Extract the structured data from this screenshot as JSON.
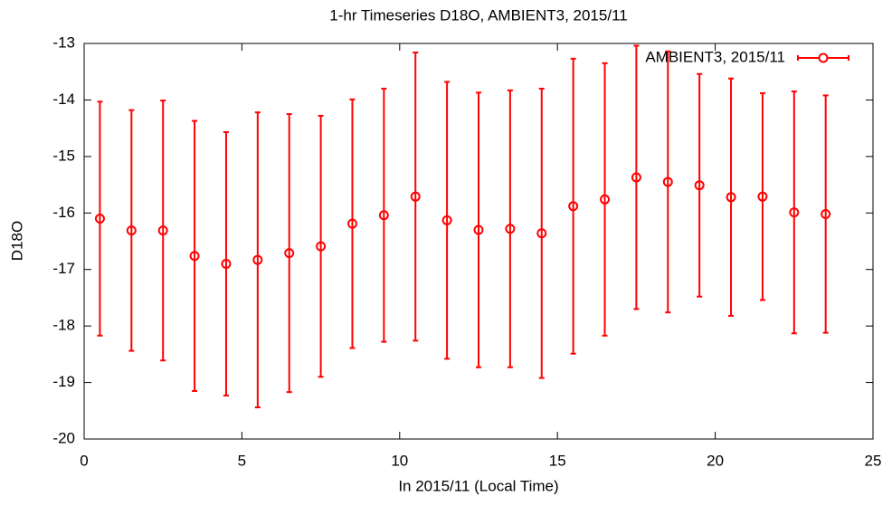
{
  "chart_data": {
    "type": "errorbar",
    "title": "1-hr Timeseries D18O, AMBIENT3, 2015/11",
    "x_label": "In 2015/11 (Local Time)",
    "y_label": "D18O",
    "legend_position": "upper right",
    "x": [
      0.5,
      1.5,
      2.5,
      3.5,
      4.5,
      5.5,
      6.5,
      7.5,
      8.5,
      9.5,
      10.5,
      11.5,
      12.5,
      13.5,
      14.5,
      15.5,
      16.5,
      17.5,
      18.5,
      19.5,
      20.5,
      21.5,
      22.5,
      23.5
    ],
    "series": [
      {
        "name": "AMBIENT3, 2015/11",
        "color": "#ff0000",
        "values": [
          -16.1,
          -16.31,
          -16.31,
          -16.76,
          -16.9,
          -16.83,
          -16.71,
          -16.59,
          -16.19,
          -16.04,
          -15.71,
          -16.13,
          -16.3,
          -16.28,
          -16.36,
          -15.88,
          -15.76,
          -15.37,
          -15.45,
          -15.51,
          -15.72,
          -15.71,
          -15.99,
          -16.02
        ],
        "errors": [
          2.07,
          2.13,
          2.3,
          2.39,
          2.33,
          2.61,
          2.46,
          2.31,
          2.2,
          2.24,
          2.55,
          2.45,
          2.43,
          2.45,
          2.56,
          2.61,
          2.41,
          2.33,
          2.31,
          1.97,
          2.1,
          1.83,
          2.14,
          2.1
        ]
      }
    ],
    "xlim": [
      0,
      25
    ],
    "xticks": [
      0,
      5,
      10,
      15,
      20,
      25
    ],
    "ylim": [
      -20,
      -13
    ],
    "yticks": [
      -20,
      -19,
      -18,
      -17,
      -16,
      -15,
      -14,
      -13
    ]
  }
}
